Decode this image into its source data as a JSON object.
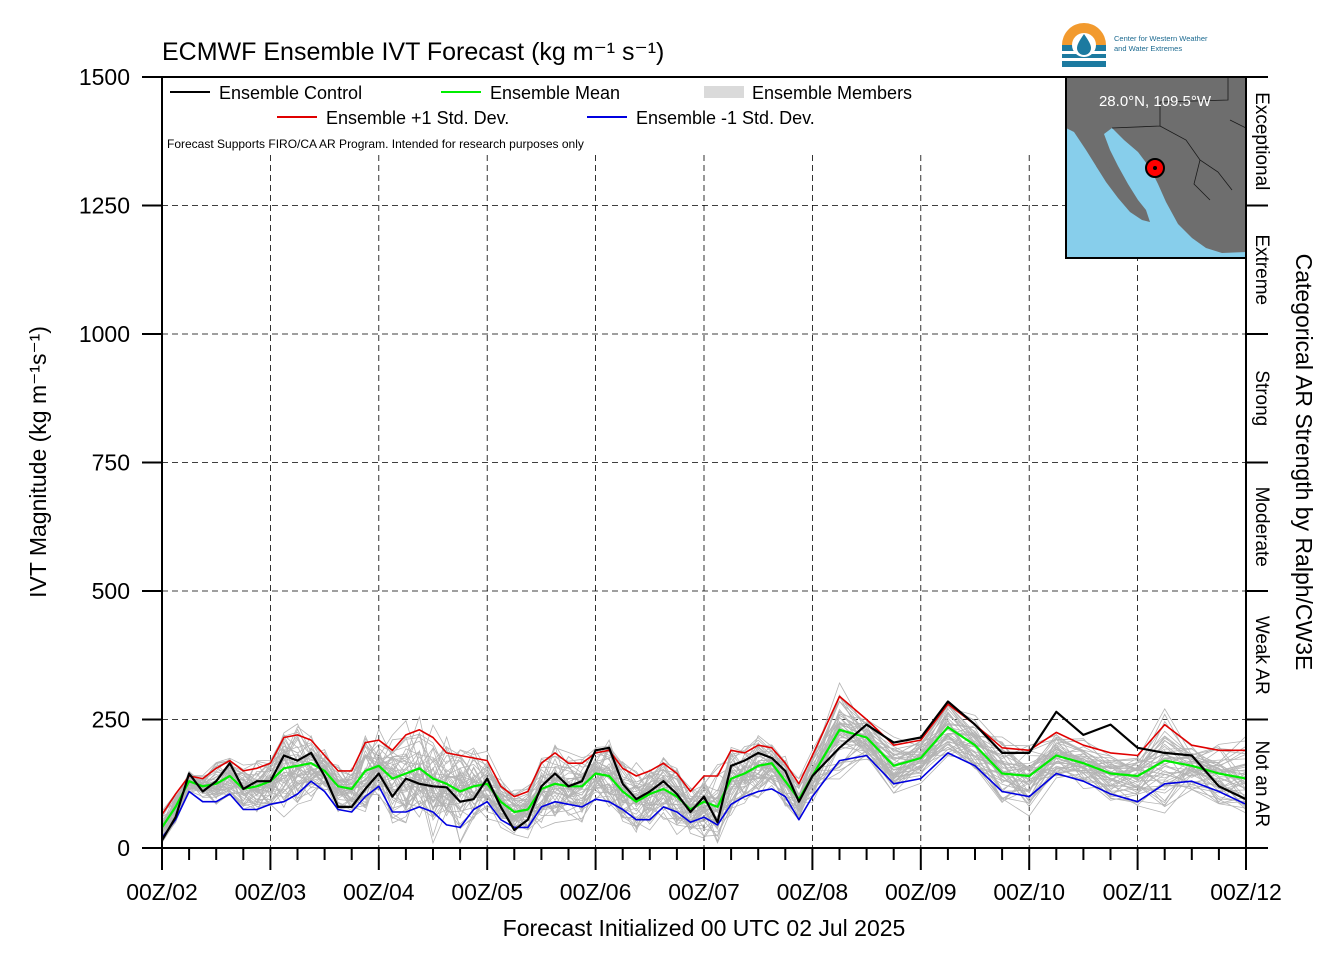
{
  "logo": {
    "line1": "Center for Western Weather",
    "line2": "and Water Extremes"
  },
  "inset": {
    "label": "28.0°N, 109.5°W",
    "colors": {
      "land": "#6e6e6e",
      "water": "#87ceeb",
      "marker": "#ff0000"
    }
  },
  "chart_data": {
    "type": "line",
    "title": "ECMWF Ensemble IVT Forecast (kg m⁻¹ s⁻¹)",
    "xlabel": "Forecast Initialized 00 UTC 02 Jul 2025",
    "ylabel": "IVT Magnitude (kg m⁻¹s⁻¹)",
    "right_label": "Categorical AR Strength by Ralph/CW3E",
    "note": "Forecast Supports FIRO/CA AR Program. Intended for research purposes only",
    "xlim": [
      0,
      240
    ],
    "ylim": [
      0,
      1500
    ],
    "x_units": "forecast hours from 00Z/02",
    "x_ticks": [
      {
        "x": 0,
        "label": "00Z/02"
      },
      {
        "x": 24,
        "label": "00Z/03"
      },
      {
        "x": 48,
        "label": "00Z/04"
      },
      {
        "x": 72,
        "label": "00Z/05"
      },
      {
        "x": 96,
        "label": "00Z/06"
      },
      {
        "x": 120,
        "label": "00Z/07"
      },
      {
        "x": 144,
        "label": "00Z/08"
      },
      {
        "x": 168,
        "label": "00Z/09"
      },
      {
        "x": 192,
        "label": "00Z/10"
      },
      {
        "x": 216,
        "label": "00Z/11"
      },
      {
        "x": 240,
        "label": "00Z/12"
      }
    ],
    "y_ticks": [
      0,
      250,
      500,
      750,
      1000,
      1250,
      1500
    ],
    "grid": true,
    "legend": [
      {
        "label": "Ensemble Control",
        "color": "#000000",
        "kind": "line"
      },
      {
        "label": "Ensemble Mean",
        "color": "#00ee00",
        "kind": "line"
      },
      {
        "label": "Ensemble Members",
        "color": "#b4b4b4",
        "kind": "multi"
      },
      {
        "label": "Ensemble +1 Std. Dev.",
        "color": "#e00000",
        "kind": "line"
      },
      {
        "label": "Ensemble -1 Std. Dev.",
        "color": "#0000e0",
        "kind": "line"
      }
    ],
    "legend_location": "top-left",
    "categories": [
      {
        "label": "Not an AR",
        "from": 0,
        "to": 250
      },
      {
        "label": "Weak AR",
        "from": 250,
        "to": 500
      },
      {
        "label": "Moderate",
        "from": 500,
        "to": 750
      },
      {
        "label": "Strong",
        "from": 750,
        "to": 1000
      },
      {
        "label": "Extreme",
        "from": 1000,
        "to": 1250
      },
      {
        "label": "Exceptional",
        "from": 1250,
        "to": 1500
      }
    ],
    "series": [
      {
        "name": "Ensemble Control",
        "color": "#000000",
        "width": 2.2,
        "x": [
          0,
          3,
          6,
          9,
          12,
          15,
          18,
          21,
          24,
          27,
          30,
          33,
          36,
          39,
          42,
          45,
          48,
          51,
          54,
          57,
          60,
          63,
          66,
          69,
          72,
          75,
          78,
          81,
          84,
          87,
          90,
          93,
          96,
          99,
          102,
          105,
          108,
          111,
          114,
          117,
          120,
          123,
          126,
          129,
          132,
          135,
          138,
          141,
          144,
          150,
          156,
          162,
          168,
          174,
          180,
          186,
          192,
          198,
          204,
          210,
          216,
          222,
          228,
          234,
          240
        ],
        "y": [
          15,
          60,
          145,
          110,
          130,
          165,
          115,
          130,
          130,
          180,
          170,
          185,
          140,
          80,
          80,
          115,
          145,
          100,
          135,
          125,
          120,
          118,
          90,
          95,
          135,
          80,
          35,
          55,
          120,
          145,
          120,
          130,
          190,
          195,
          125,
          95,
          110,
          130,
          105,
          70,
          100,
          50,
          160,
          170,
          185,
          175,
          150,
          90,
          140,
          195,
          240,
          205,
          215,
          285,
          240,
          185,
          185,
          265,
          220,
          240,
          195,
          185,
          180,
          120,
          95
        ]
      },
      {
        "name": "Ensemble Mean",
        "color": "#00ee00",
        "width": 2.2,
        "x": [
          0,
          3,
          6,
          9,
          12,
          15,
          18,
          21,
          24,
          27,
          30,
          33,
          36,
          39,
          42,
          45,
          48,
          51,
          54,
          57,
          60,
          63,
          66,
          69,
          72,
          75,
          78,
          81,
          84,
          87,
          90,
          93,
          96,
          99,
          102,
          105,
          108,
          111,
          114,
          117,
          120,
          123,
          126,
          129,
          132,
          135,
          138,
          141,
          144,
          150,
          156,
          162,
          168,
          174,
          180,
          186,
          192,
          198,
          204,
          210,
          216,
          222,
          228,
          234,
          240
        ],
        "y": [
          40,
          80,
          130,
          120,
          125,
          140,
          115,
          120,
          130,
          155,
          160,
          165,
          150,
          120,
          115,
          150,
          160,
          135,
          145,
          155,
          135,
          125,
          110,
          120,
          125,
          90,
          70,
          75,
          115,
          125,
          120,
          120,
          145,
          140,
          110,
          90,
          105,
          115,
          100,
          75,
          90,
          80,
          135,
          145,
          160,
          165,
          130,
          95,
          140,
          230,
          215,
          160,
          175,
          235,
          200,
          145,
          140,
          180,
          165,
          145,
          140,
          170,
          160,
          145,
          135
        ]
      },
      {
        "name": "Ensemble +1 Std. Dev.",
        "color": "#e00000",
        "width": 1.6,
        "x": [
          0,
          3,
          6,
          9,
          12,
          15,
          18,
          21,
          24,
          27,
          30,
          33,
          36,
          39,
          42,
          45,
          48,
          51,
          54,
          57,
          60,
          63,
          66,
          69,
          72,
          75,
          78,
          81,
          84,
          87,
          90,
          93,
          96,
          99,
          102,
          105,
          108,
          111,
          114,
          117,
          120,
          123,
          126,
          129,
          132,
          135,
          138,
          141,
          144,
          150,
          156,
          162,
          168,
          174,
          180,
          186,
          192,
          198,
          204,
          210,
          216,
          222,
          228,
          234,
          240
        ],
        "y": [
          65,
          105,
          140,
          135,
          155,
          170,
          150,
          155,
          165,
          215,
          220,
          210,
          180,
          150,
          150,
          205,
          210,
          190,
          220,
          230,
          215,
          185,
          180,
          175,
          170,
          120,
          100,
          110,
          165,
          185,
          165,
          165,
          185,
          190,
          155,
          140,
          150,
          165,
          145,
          110,
          140,
          140,
          190,
          185,
          200,
          195,
          165,
          125,
          180,
          295,
          250,
          200,
          210,
          280,
          240,
          195,
          190,
          225,
          200,
          185,
          180,
          240,
          200,
          190,
          190
        ]
      },
      {
        "name": "Ensemble -1 Std. Dev.",
        "color": "#0000e0",
        "width": 1.6,
        "x": [
          0,
          3,
          6,
          9,
          12,
          15,
          18,
          21,
          24,
          27,
          30,
          33,
          36,
          39,
          42,
          45,
          48,
          51,
          54,
          57,
          60,
          63,
          66,
          69,
          72,
          75,
          78,
          81,
          84,
          87,
          90,
          93,
          96,
          99,
          102,
          105,
          108,
          111,
          114,
          117,
          120,
          123,
          126,
          129,
          132,
          135,
          138,
          141,
          144,
          150,
          156,
          162,
          168,
          174,
          180,
          186,
          192,
          198,
          204,
          210,
          216,
          222,
          228,
          234,
          240
        ],
        "y": [
          20,
          55,
          110,
          90,
          90,
          105,
          75,
          75,
          85,
          90,
          105,
          130,
          110,
          75,
          70,
          100,
          120,
          70,
          70,
          80,
          70,
          45,
          40,
          75,
          90,
          55,
          40,
          40,
          80,
          90,
          85,
          80,
          95,
          90,
          75,
          55,
          55,
          80,
          70,
          50,
          60,
          45,
          85,
          100,
          110,
          115,
          100,
          55,
          100,
          170,
          180,
          125,
          135,
          185,
          160,
          110,
          100,
          145,
          130,
          105,
          90,
          125,
          130,
          110,
          85
        ]
      }
    ],
    "members": {
      "count": 50,
      "color": "#b4b4b4",
      "range_min": 10,
      "range_max": 415
    }
  }
}
